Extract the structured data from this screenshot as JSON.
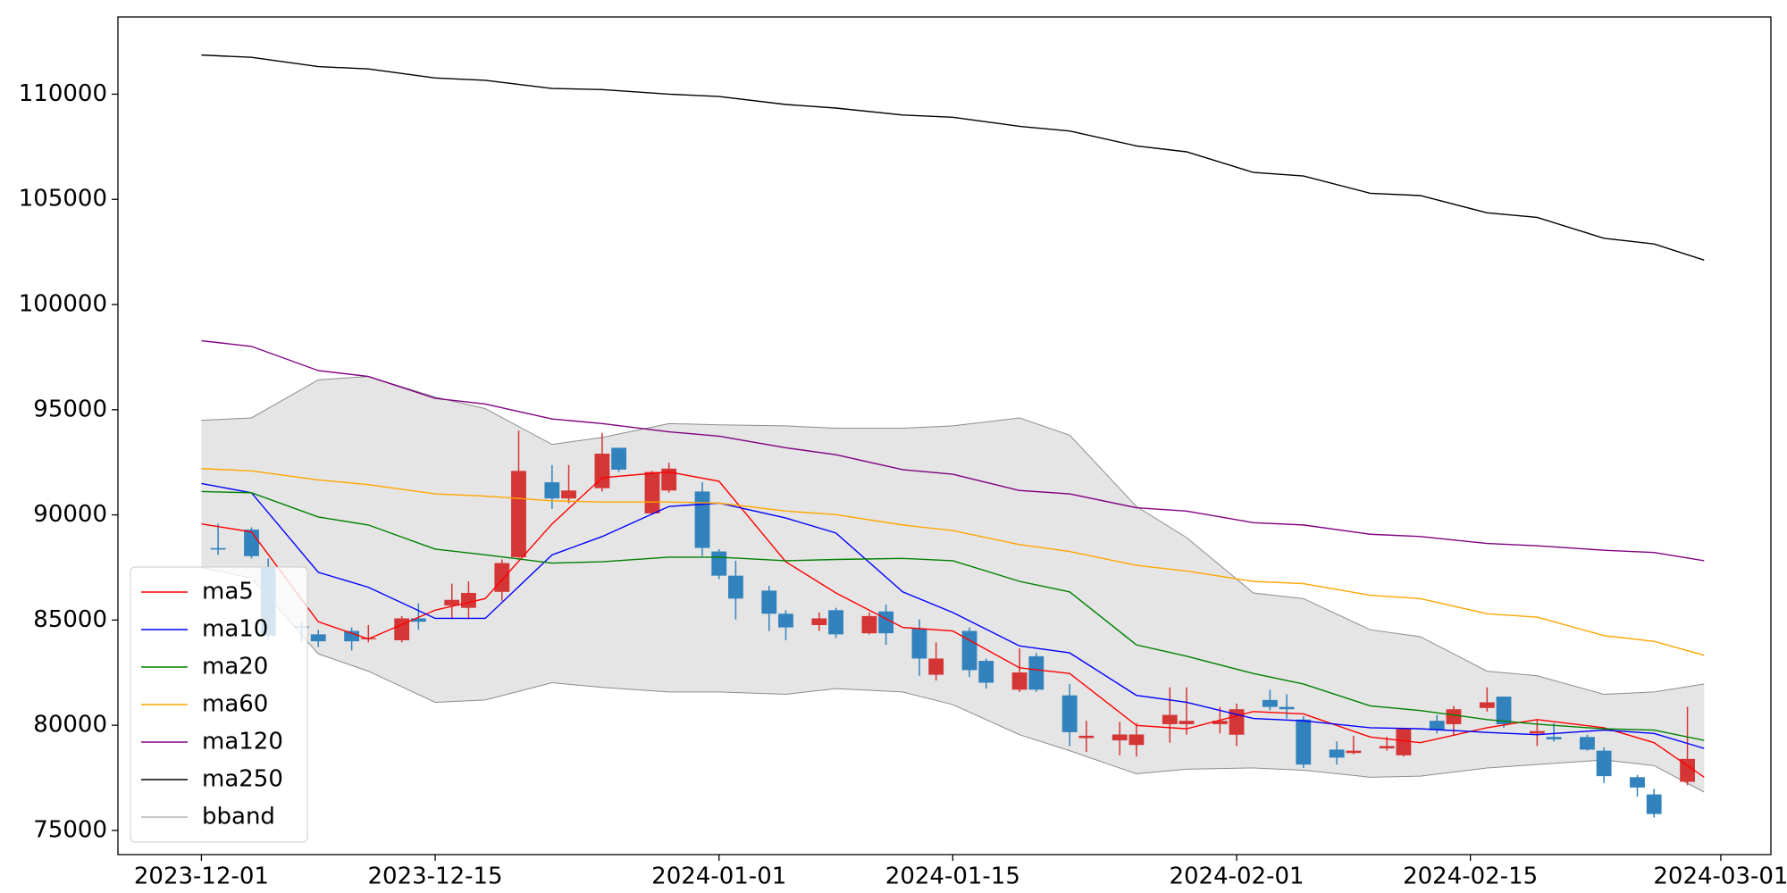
{
  "chart_data": {
    "type": "candlestick",
    "x": [
      "2023-12-02",
      "2023-12-04",
      "2023-12-05",
      "2023-12-07",
      "2023-12-08",
      "2023-12-10",
      "2023-12-11",
      "2023-12-13",
      "2023-12-14",
      "2023-12-16",
      "2023-12-17",
      "2023-12-19",
      "2023-12-20",
      "2023-12-22",
      "2023-12-23",
      "2023-12-25",
      "2023-12-26",
      "2023-12-28",
      "2023-12-29",
      "2023-12-31",
      "2024-01-01",
      "2024-01-02",
      "2024-01-04",
      "2024-01-05",
      "2024-01-07",
      "2024-01-08",
      "2024-01-10",
      "2024-01-11",
      "2024-01-13",
      "2024-01-14",
      "2024-01-16",
      "2024-01-17",
      "2024-01-19",
      "2024-01-20",
      "2024-01-22",
      "2024-01-23",
      "2024-01-25",
      "2024-01-26",
      "2024-01-28",
      "2024-01-29",
      "2024-01-31",
      "2024-02-01",
      "2024-02-03",
      "2024-02-04",
      "2024-02-05",
      "2024-02-07",
      "2024-02-08",
      "2024-02-10",
      "2024-02-11",
      "2024-02-13",
      "2024-02-14",
      "2024-02-16",
      "2024-02-17",
      "2024-02-19",
      "2024-02-20",
      "2024-02-22",
      "2024-02-23",
      "2024-02-25",
      "2024-02-26",
      "2024-02-28"
    ],
    "open": [
      88420,
      89300,
      87490,
      84700,
      84320,
      84480,
      84100,
      84040,
      85080,
      85690,
      85580,
      86340,
      87990,
      91550,
      90780,
      91270,
      93190,
      90070,
      91160,
      91110,
      88260,
      87110,
      86400,
      85300,
      84760,
      85470,
      84370,
      85410,
      84590,
      82400,
      84480,
      83060,
      81690,
      83280,
      81420,
      79390,
      79280,
      79060,
      80050,
      80050,
      80050,
      79550,
      81200,
      80870,
      80270,
      78840,
      78680,
      78900,
      78570,
      80210,
      80050,
      80820,
      81360,
      79610,
      79440,
      79440,
      78790,
      77530,
      76710,
      77310
    ],
    "high": [
      89570,
      89410,
      87930,
      84920,
      84540,
      84650,
      84760,
      85190,
      85800,
      86730,
      86840,
      87880,
      94010,
      92370,
      92370,
      93900,
      93190,
      92090,
      92480,
      91550,
      88370,
      87820,
      86620,
      85470,
      85360,
      85580,
      85360,
      85740,
      85030,
      83940,
      84650,
      83170,
      83660,
      83440,
      81960,
      80210,
      80160,
      80100,
      81800,
      81800,
      80870,
      81030,
      81690,
      81470,
      80430,
      79230,
      79500,
      79450,
      79880,
      80490,
      80920,
      81800,
      81360,
      80270,
      80100,
      79550,
      78950,
      77640,
      76980,
      80870
    ],
    "low": [
      88100,
      87930,
      84100,
      83940,
      83720,
      83550,
      83940,
      83940,
      84540,
      85080,
      85030,
      85910,
      87880,
      90290,
      90560,
      91110,
      92040,
      90010,
      91050,
      88040,
      86950,
      85030,
      84480,
      84040,
      84480,
      84150,
      84320,
      83820,
      82350,
      82130,
      82290,
      81740,
      81580,
      81580,
      79010,
      78730,
      78570,
      78510,
      79170,
      79550,
      79610,
      79010,
      80700,
      80320,
      77970,
      78130,
      78620,
      78790,
      78510,
      79610,
      79550,
      80650,
      79880,
      79010,
      79220,
      78790,
      77260,
      76600,
      75610,
      77150
    ],
    "close": [
      88350,
      88040,
      84260,
      84650,
      83990,
      83990,
      84150,
      85080,
      84920,
      85960,
      86290,
      87710,
      92090,
      90780,
      91160,
      92910,
      92150,
      92040,
      92200,
      88430,
      87110,
      86020,
      85300,
      84650,
      85080,
      84320,
      85190,
      84370,
      83170,
      83170,
      82620,
      82020,
      82510,
      81690,
      79670,
      79500,
      79560,
      79560,
      80490,
      80210,
      80210,
      80760,
      80870,
      80760,
      78130,
      78460,
      78790,
      79010,
      79830,
      79770,
      80760,
      81090,
      80050,
      79720,
      79330,
      78840,
      77580,
      77040,
      75780,
      78400
    ],
    "up_color": "#d43535",
    "down_color": "#3182bd",
    "lines": {
      "x": [
        "2023-12-01",
        "2023-12-04",
        "2023-12-08",
        "2023-12-11",
        "2023-12-15",
        "2023-12-18",
        "2023-12-22",
        "2023-12-25",
        "2023-12-29",
        "2024-01-01",
        "2024-01-05",
        "2024-01-08",
        "2024-01-12",
        "2024-01-15",
        "2024-01-19",
        "2024-01-22",
        "2024-01-26",
        "2024-01-29",
        "2024-02-02",
        "2024-02-05",
        "2024-02-09",
        "2024-02-12",
        "2024-02-16",
        "2024-02-19",
        "2024-02-23",
        "2024-02-26",
        "2024-02-29"
      ],
      "series": [
        {
          "name": "ma5",
          "color": "red",
          "values": [
            89570,
            89190,
            84920,
            84100,
            85470,
            86020,
            89570,
            91770,
            92040,
            91600,
            87770,
            86290,
            84650,
            84480,
            82730,
            82460,
            79990,
            79830,
            80650,
            80540,
            79440,
            79170,
            79880,
            80270,
            79880,
            79170,
            77530
          ]
        },
        {
          "name": "ma10",
          "color": "blue",
          "values": [
            91490,
            91050,
            87270,
            86560,
            85080,
            85080,
            88100,
            88970,
            90400,
            90560,
            89850,
            89140,
            86340,
            85360,
            83770,
            83440,
            81420,
            81090,
            80320,
            80210,
            79880,
            79830,
            79660,
            79550,
            79770,
            79610,
            78900
          ]
        },
        {
          "name": "ma20",
          "color": "green",
          "values": [
            91110,
            91050,
            89900,
            89520,
            88370,
            88100,
            87710,
            87770,
            87990,
            87990,
            87820,
            87880,
            87930,
            87820,
            86840,
            86340,
            83820,
            83280,
            82460,
            81960,
            80920,
            80700,
            80270,
            80050,
            79830,
            79770,
            79280
          ]
        },
        {
          "name": "ma60",
          "color": "orange",
          "values": [
            92200,
            92090,
            91660,
            91440,
            91000,
            90890,
            90670,
            90610,
            90610,
            90560,
            90180,
            90010,
            89520,
            89250,
            88590,
            88260,
            87600,
            87330,
            86840,
            86730,
            86180,
            86020,
            85300,
            85140,
            84260,
            83990,
            83330
          ]
        },
        {
          "name": "ma120",
          "color": "purple",
          "values": [
            98280,
            98010,
            96860,
            96580,
            95540,
            95270,
            94560,
            94340,
            93950,
            93740,
            93190,
            92860,
            92150,
            91930,
            91160,
            91000,
            90340,
            90180,
            89630,
            89520,
            89080,
            88970,
            88640,
            88530,
            88320,
            88210,
            87820
          ]
        },
        {
          "name": "ma250",
          "color": "black",
          "values": [
            111860,
            111750,
            111310,
            111200,
            110770,
            110660,
            110270,
            110220,
            110000,
            109890,
            109510,
            109340,
            109010,
            108900,
            108470,
            108250,
            107540,
            107260,
            106280,
            106110,
            105290,
            105180,
            104360,
            104140,
            103150,
            102880,
            102110
          ]
        }
      ]
    },
    "band": {
      "name": "bband",
      "color": "#8c8c8c",
      "fill": "#e5e5e5",
      "upper": [
        94500,
        94610,
        96420,
        96580,
        95600,
        95050,
        93350,
        93680,
        94340,
        94280,
        94230,
        94120,
        94120,
        94230,
        94610,
        93790,
        90400,
        88920,
        86290,
        86020,
        84540,
        84210,
        82570,
        82350,
        81470,
        81580,
        81960
      ],
      "lower": [
        87490,
        87000,
        83390,
        82570,
        81090,
        81200,
        82020,
        81800,
        81580,
        81580,
        81470,
        81740,
        81580,
        80980,
        79550,
        78790,
        77690,
        77910,
        77970,
        77860,
        77530,
        77580,
        77970,
        78130,
        78350,
        78080,
        76820
      ]
    },
    "xlim": [
      "2023-11-26",
      "2024-03-04"
    ],
    "xticks": [
      "2023-12-01",
      "2023-12-15",
      "2024-01-01",
      "2024-01-15",
      "2024-02-01",
      "2024-02-15",
      "2024-03-01"
    ],
    "ylim": [
      73850,
      113670
    ],
    "yticks": [
      75000,
      80000,
      85000,
      90000,
      95000,
      100000,
      105000,
      110000
    ],
    "legend": "lower left"
  }
}
